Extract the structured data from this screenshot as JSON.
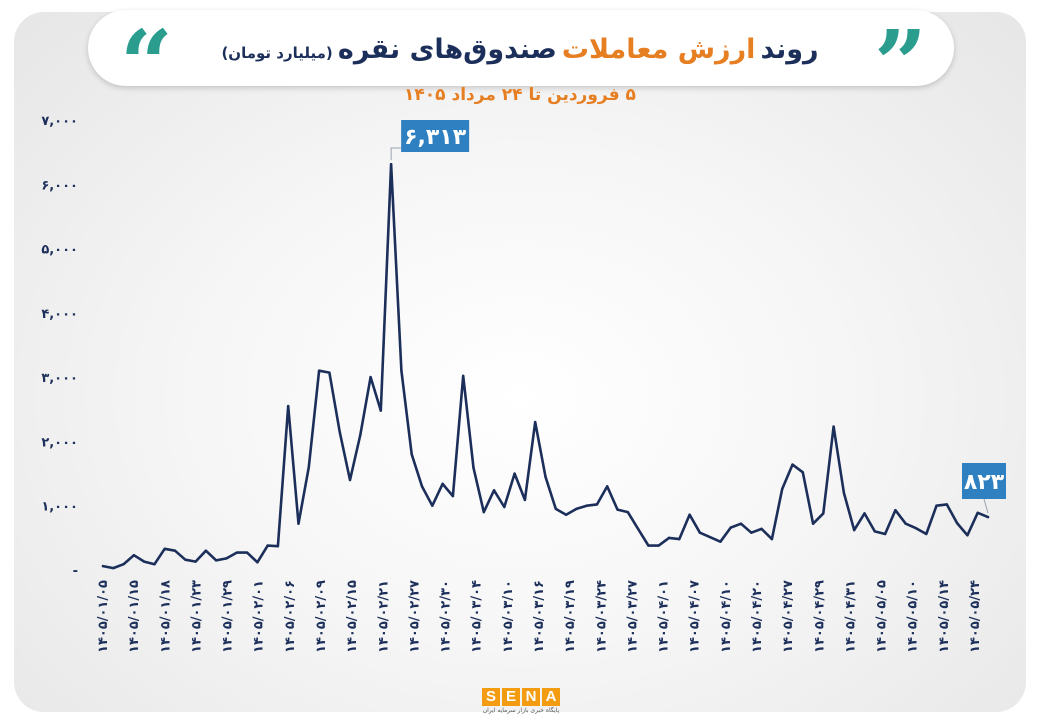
{
  "header": {
    "title_part1": "روند",
    "title_part2": "ارزش معاملات",
    "title_part3": "صندوق‌های نقره",
    "title_unit": "(میلیارد تومان)",
    "subtitle": "۵ فروردین تا ۲۴ مرداد ۱۴۰۵",
    "quote_left": "“",
    "quote_right": "”"
  },
  "brand": {
    "letters": [
      "S",
      "E",
      "N",
      "A"
    ],
    "tagline": "پایگاه خبری بازار سرمایه ایران"
  },
  "colors": {
    "line": "#1c2f5a",
    "callout": "#2f80c0",
    "accent": "#e67e22",
    "quote": "#2a9d8f",
    "brand": "#f39c12"
  },
  "chart_data": {
    "type": "line",
    "title": "روند ارزش معاملات صندوق‌های نقره (میلیارد تومان)",
    "subtitle": "۵ فروردین تا ۲۴ مرداد ۱۴۰۵",
    "xlabel": "",
    "ylabel": "",
    "ylim": [
      0,
      7000
    ],
    "grid": false,
    "y_ticks": [
      {
        "value": 0,
        "label": "-"
      },
      {
        "value": 1000,
        "label": "۱,۰۰۰"
      },
      {
        "value": 2000,
        "label": "۲,۰۰۰"
      },
      {
        "value": 3000,
        "label": "۳,۰۰۰"
      },
      {
        "value": 4000,
        "label": "۴,۰۰۰"
      },
      {
        "value": 5000,
        "label": "۵,۰۰۰"
      },
      {
        "value": 6000,
        "label": "۶,۰۰۰"
      },
      {
        "value": 7000,
        "label": "۷,۰۰۰"
      }
    ],
    "x_tick_labels": [
      "۱۴۰۵/۰۱/۰۵",
      "۱۴۰۵/۰۱/۱۵",
      "۱۴۰۵/۰۱/۱۸",
      "۱۴۰۵/۰۱/۲۳",
      "۱۴۰۵/۰۱/۲۹",
      "۱۴۰۵/۰۲/۰۱",
      "۱۴۰۵/۰۲/۰۶",
      "۱۴۰۵/۰۲/۰۹",
      "۱۴۰۵/۰۲/۱۵",
      "۱۴۰۵/۰۲/۲۱",
      "۱۴۰۵/۰۲/۲۷",
      "۱۴۰۵/۰۲/۳۰",
      "۱۴۰۵/۰۳/۰۴",
      "۱۴۰۵/۰۳/۱۰",
      "۱۴۰۵/۰۳/۱۶",
      "۱۴۰۵/۰۳/۱۹",
      "۱۴۰۵/۰۳/۲۴",
      "۱۴۰۵/۰۳/۲۷",
      "۱۴۰۵/۰۴/۰۱",
      "۱۴۰۵/۰۴/۰۷",
      "۱۴۰۵/۰۴/۱۰",
      "۱۴۰۵/۰۴/۲۰",
      "۱۴۰۵/۰۴/۲۷",
      "۱۴۰۵/۰۴/۲۹",
      "۱۴۰۵/۰۴/۳۱",
      "۱۴۰۵/۰۵/۰۵",
      "۱۴۰۵/۰۵/۱۰",
      "۱۴۰۵/۰۵/۱۴",
      "۱۴۰۵/۰۵/۲۴"
    ],
    "series": [
      {
        "values": [
          60,
          30,
          90,
          230,
          130,
          90,
          330,
          300,
          160,
          130,
          300,
          150,
          180,
          270,
          270,
          120,
          380,
          370,
          2550,
          720,
          1600,
          3100,
          3070,
          2150,
          1400,
          2100,
          3000,
          2480,
          6313,
          3100,
          1800,
          1300,
          1000,
          1340,
          1150,
          3020,
          1590,
          900,
          1240,
          980,
          1500,
          1090,
          2300,
          1450,
          950,
          860,
          950,
          1000,
          1020,
          1300,
          940,
          900,
          640,
          380,
          380,
          500,
          480,
          860,
          580,
          510,
          440,
          660,
          720,
          580,
          640,
          480,
          1260,
          1640,
          1520,
          720,
          880,
          2230,
          1200,
          620,
          880,
          600,
          560,
          930,
          720,
          650,
          560,
          1000,
          1020,
          730,
          540,
          890,
          823
        ]
      }
    ],
    "annotations": [
      {
        "label": "۶,۳۱۳",
        "value": 6313,
        "point_index": 28,
        "style": "callout"
      },
      {
        "label": "۸۲۳",
        "value": 823,
        "point_index": 86,
        "style": "callout"
      }
    ]
  }
}
